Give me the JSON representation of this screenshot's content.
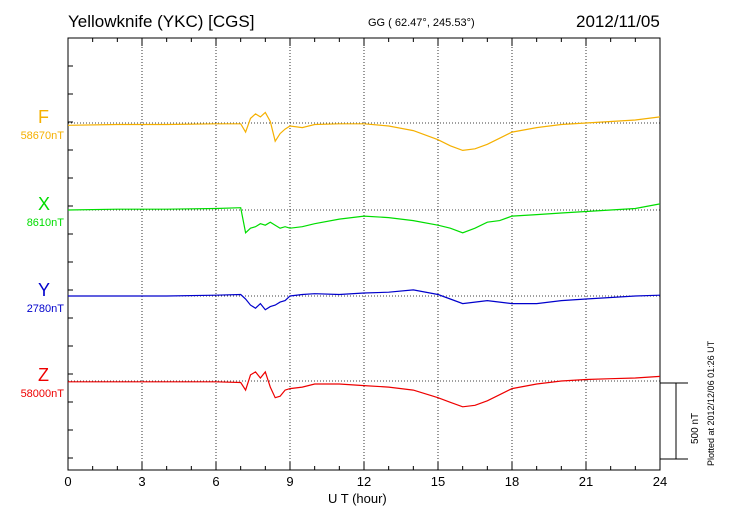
{
  "header": {
    "station": "Yellowknife (YKC)  [CGS]",
    "coords": "GG ( 62.47°, 245.53°)",
    "date": "2012/11/05"
  },
  "footnote": "Plotted at 2012/12/06 01:26 UT",
  "colors": {
    "F": "#f5b000",
    "X": "#00dd00",
    "Y": "#0000cc",
    "Z": "#ee0000"
  },
  "chart_data": {
    "type": "line",
    "title": "Yellowknife (YKC)  [CGS]",
    "xlabel": "U T (hour)",
    "ylabel": "",
    "xlim": [
      0,
      24
    ],
    "x_ticks": [
      0,
      3,
      6,
      9,
      12,
      15,
      18,
      21,
      24
    ],
    "x_tick_labels": [
      "0",
      "3",
      "6",
      "9",
      "12",
      "15",
      "18",
      "21",
      "24"
    ],
    "scale_bar": {
      "value": 500,
      "label": "500 nT"
    },
    "grid": true,
    "series": [
      {
        "name": "F",
        "baseline_label": "58670nT",
        "color": "#f5b000",
        "x": [
          0,
          2,
          4,
          6,
          7,
          7.2,
          7.4,
          7.6,
          7.8,
          8.0,
          8.2,
          8.4,
          8.6,
          8.8,
          9.0,
          9.5,
          10,
          11,
          12,
          13,
          14,
          15,
          15.5,
          16,
          16.5,
          17,
          17.5,
          18,
          19,
          20,
          21,
          22,
          23,
          24
        ],
        "y": [
          -15,
          -10,
          -10,
          -5,
          -5,
          -60,
          30,
          60,
          40,
          70,
          10,
          -120,
          -70,
          -40,
          -20,
          -30,
          -10,
          -5,
          -5,
          -20,
          -50,
          -110,
          -150,
          -180,
          -170,
          -140,
          -100,
          -60,
          -30,
          -10,
          0,
          10,
          20,
          40
        ]
      },
      {
        "name": "X",
        "baseline_label": "8610nT",
        "color": "#00dd00",
        "x": [
          0,
          2,
          4,
          6,
          7,
          7.2,
          7.4,
          7.6,
          7.8,
          8.0,
          8.2,
          8.4,
          8.6,
          8.8,
          9.0,
          9.5,
          10,
          11,
          12,
          13,
          14,
          15,
          15.5,
          16,
          16.5,
          17,
          17.5,
          18,
          19,
          20,
          21,
          22,
          23,
          24
        ],
        "y": [
          0,
          5,
          5,
          10,
          15,
          -150,
          -120,
          -110,
          -90,
          -100,
          -80,
          -100,
          -120,
          -110,
          -120,
          -110,
          -90,
          -60,
          -40,
          -50,
          -70,
          -100,
          -120,
          -150,
          -120,
          -80,
          -70,
          -40,
          -30,
          -20,
          -10,
          0,
          10,
          40
        ]
      },
      {
        "name": "Y",
        "baseline_label": "2780nT",
        "color": "#0000cc",
        "x": [
          0,
          2,
          4,
          6,
          7,
          7.2,
          7.4,
          7.6,
          7.8,
          8.0,
          8.2,
          8.4,
          8.6,
          8.8,
          9.0,
          9.5,
          10,
          11,
          12,
          13,
          14,
          15,
          15.5,
          16,
          16.5,
          17,
          17.5,
          18,
          19,
          20,
          21,
          22,
          23,
          24
        ],
        "y": [
          0,
          0,
          0,
          5,
          10,
          -20,
          -60,
          -80,
          -50,
          -90,
          -70,
          -60,
          -40,
          -30,
          0,
          10,
          15,
          10,
          20,
          25,
          40,
          10,
          -20,
          -50,
          -40,
          -30,
          -40,
          -50,
          -50,
          -30,
          -20,
          -10,
          0,
          5
        ]
      },
      {
        "name": "Z",
        "baseline_label": "58000nT",
        "color": "#ee0000",
        "x": [
          0,
          2,
          4,
          6,
          7,
          7.2,
          7.4,
          7.6,
          7.8,
          8.0,
          8.2,
          8.4,
          8.6,
          8.8,
          9.0,
          9.5,
          10,
          11,
          12,
          13,
          14,
          15,
          15.5,
          16,
          16.5,
          17,
          17.5,
          18,
          19,
          20,
          21,
          22,
          23,
          24
        ],
        "y": [
          -5,
          -5,
          -5,
          -5,
          -10,
          -60,
          40,
          60,
          20,
          60,
          -40,
          -110,
          -100,
          -60,
          -50,
          -40,
          -20,
          -20,
          -30,
          -40,
          -60,
          -110,
          -140,
          -170,
          -160,
          -130,
          -90,
          -50,
          -20,
          0,
          10,
          15,
          20,
          30
        ]
      }
    ]
  }
}
